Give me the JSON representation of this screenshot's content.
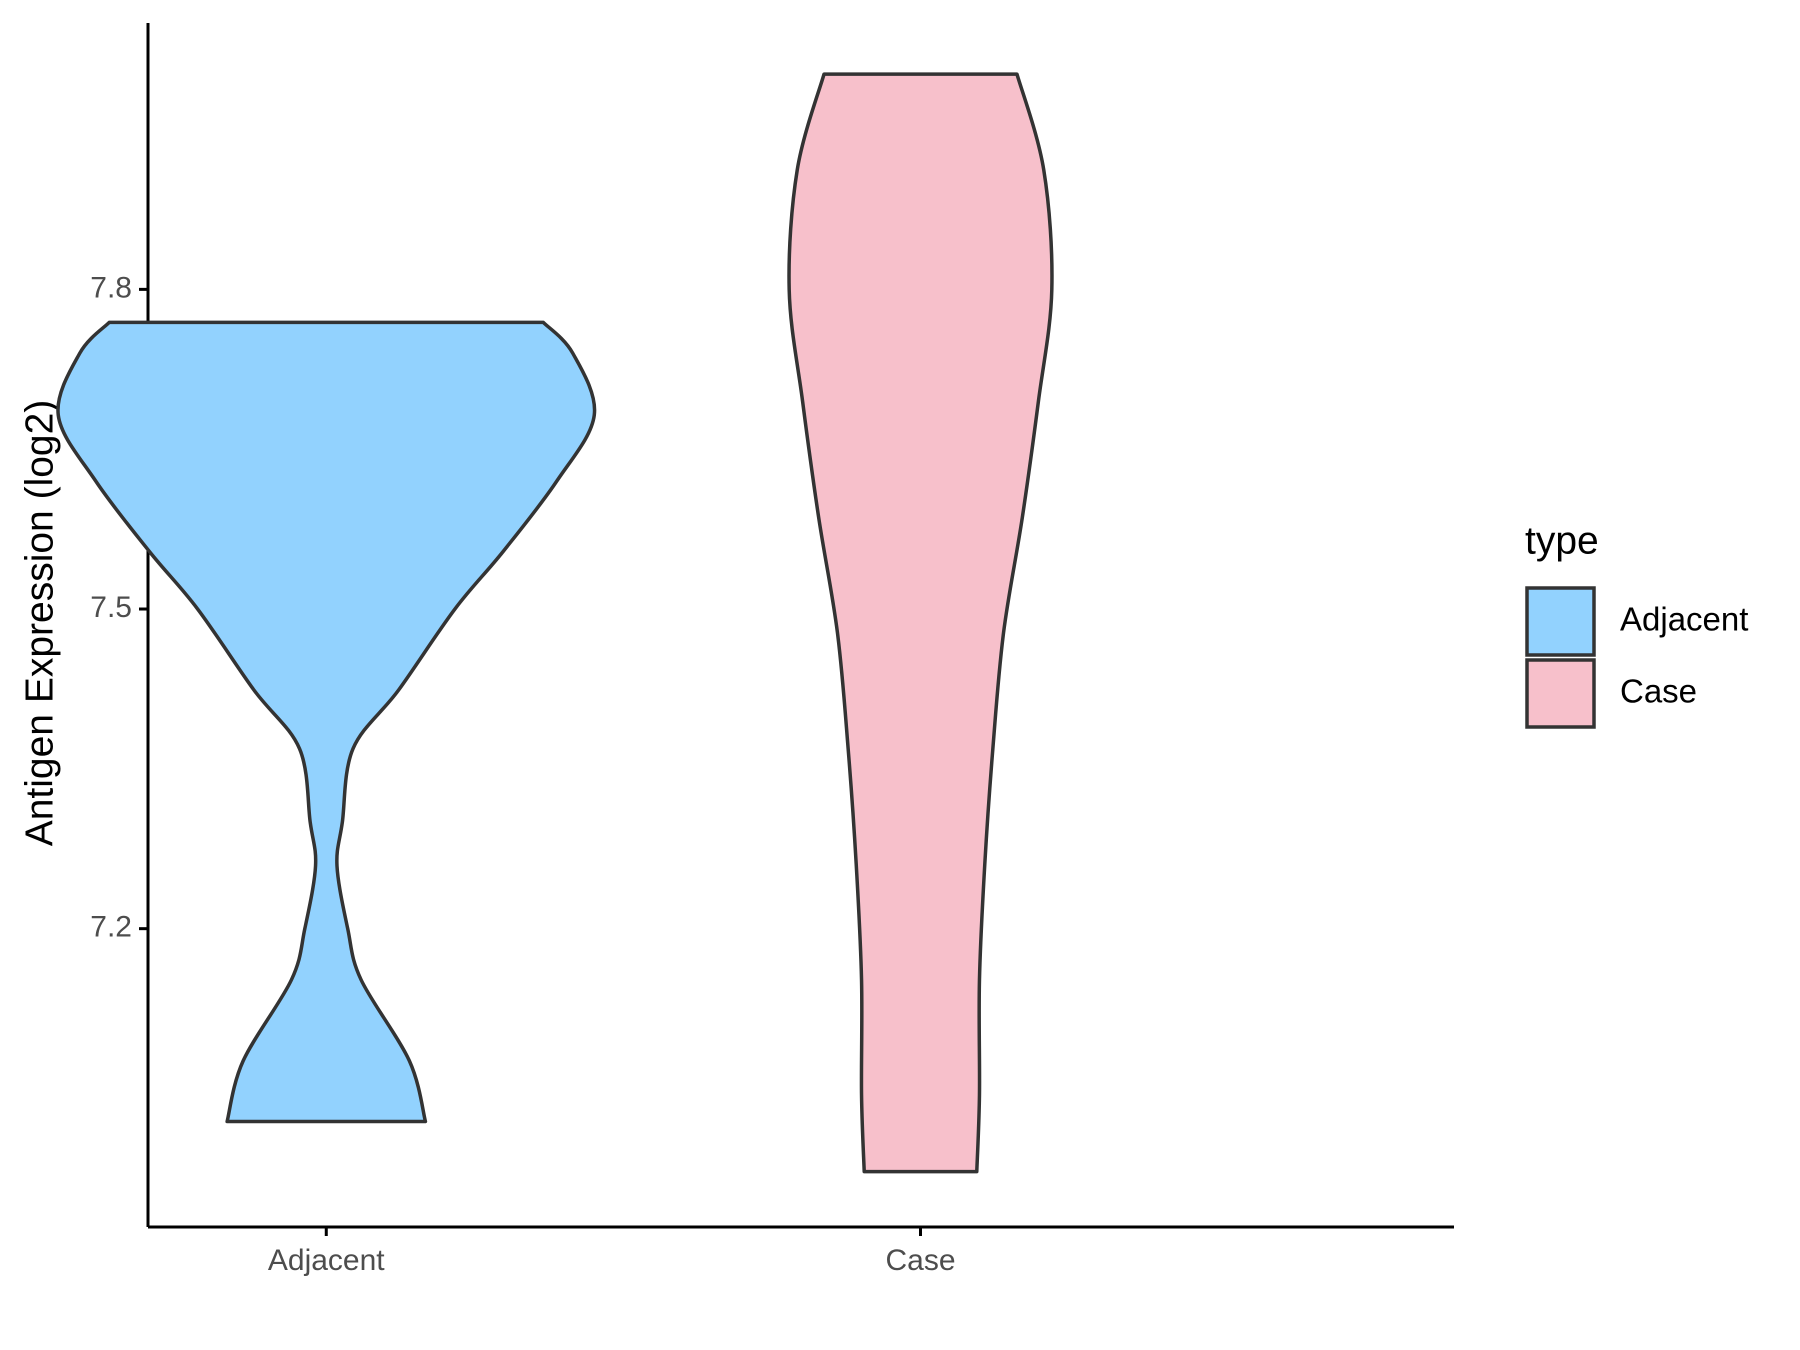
{
  "chart_data": {
    "type": "violin",
    "y_label": "Antigen Expression (log2)",
    "categories": [
      "Adjacent",
      "Case"
    ],
    "legend_title": "type",
    "series": [
      {
        "name": "Adjacent",
        "color": "#92d2fe",
        "y": [
          7.769,
          7.74,
          7.682,
          7.62,
          7.554,
          7.5,
          7.424,
          7.369,
          7.3,
          7.259,
          7.2,
          7.152,
          7.076,
          7.019
        ],
        "width": [
          0.81,
          0.92,
          1,
          0.86,
          0.66,
          0.48,
          0.27,
          0.1,
          0.06,
          0.04,
          0.08,
          0.13,
          0.31,
          0.37
        ]
      },
      {
        "name": "Case",
        "color": "#f7c0cb",
        "y": [
          8.002,
          7.912,
          7.8,
          7.695,
          7.586,
          7.478,
          7.369,
          7.261,
          7.152,
          7.044,
          6.972
        ],
        "width": [
          0.36,
          0.46,
          0.49,
          0.44,
          0.38,
          0.31,
          0.27,
          0.24,
          0.22,
          0.22,
          0.21
        ]
      }
    ],
    "ylim": [
      6.92,
      8.05
    ],
    "yticks": [
      7.2,
      7.5,
      7.8
    ],
    "grid": false,
    "legend": "right"
  }
}
